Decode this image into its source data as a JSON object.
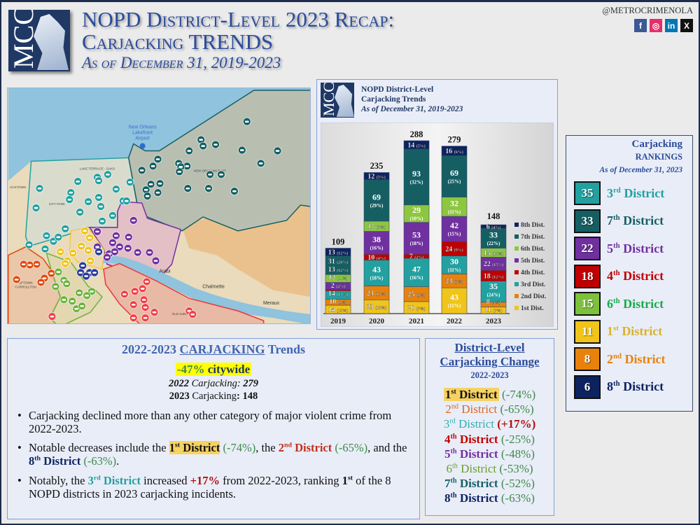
{
  "header": {
    "logo_text": "MCC",
    "title_line1": "NOPD District-Level 2023 Recap:",
    "title_line2": "Carjacking TRENDS",
    "subtitle": "As of December 31, 2019-2023",
    "handle": "@METROCRIMENOLA",
    "social": [
      {
        "icon": "facebook-icon",
        "glyph": "f",
        "color": "#3b5998"
      },
      {
        "icon": "instagram-icon",
        "glyph": "◎",
        "color": "#e1306c"
      },
      {
        "icon": "linkedin-icon",
        "glyph": "in",
        "color": "#0077b5"
      },
      {
        "icon": "x-icon",
        "glyph": "X",
        "color": "#111111"
      }
    ]
  },
  "map": {
    "labels": [
      "New Orleans",
      "Lakefront",
      "Airport",
      "LAKE TERRACE - OAKS",
      "CITY PARK",
      "UCKTOWN",
      "UPTOWN",
      "CARROLLTON",
      "Arabi",
      "Chalmette",
      "Meraux",
      "OLD AURORA",
      "NEW ORLEANS EAST"
    ]
  },
  "chart_panel": {
    "logo_text": "MCC",
    "title_line1": "NOPD District-Level",
    "title_line2": "Carjacking Trends",
    "subtitle": "As of December 31, 2019-2023"
  },
  "chart_data": {
    "type": "bar",
    "stacked": true,
    "categories": [
      "2019",
      "2020",
      "2021",
      "2022",
      "2023"
    ],
    "totals": [
      109,
      235,
      288,
      279,
      148
    ],
    "series": [
      {
        "name": "1st Dist.",
        "color": "#f0c419",
        "values": [
          14,
          23,
          20,
          43,
          11
        ],
        "pct": [
          "13%",
          "10%",
          "7%",
          "15%",
          "7%"
        ]
      },
      {
        "name": "2nd Dist.",
        "color": "#e8820c",
        "values": [
          10,
          23,
          25,
          23,
          8
        ],
        "pct": [
          "9%",
          "10%",
          "9%",
          "8%",
          "5%"
        ]
      },
      {
        "name": "3rd Dist.",
        "color": "#23a0a0",
        "values": [
          14,
          43,
          47,
          30,
          35
        ],
        "pct": [
          "13%",
          "18%",
          "16%",
          "11%",
          "24%"
        ]
      },
      {
        "name": "4th Dist.",
        "color": "#c00000",
        "values": [
          2,
          10,
          7,
          24,
          18
        ],
        "pct": [
          "2%",
          "4%",
          "2%",
          "9%",
          "12%"
        ]
      },
      {
        "name": "5th Dist.",
        "color": "#7030a0",
        "values": [
          12,
          38,
          53,
          42,
          22
        ],
        "pct": [
          "11%",
          "16%",
          "18%",
          "15%",
          "15%"
        ]
      },
      {
        "name": "6th Dist.",
        "color": "#8dc63f",
        "values": [
          13,
          17,
          29,
          32,
          15
        ],
        "pct": [
          "12%",
          "7%",
          "10%",
          "11%",
          "10%"
        ]
      },
      {
        "name": "7th Dist.",
        "color": "#155f63",
        "values": [
          31,
          69,
          93,
          69,
          33
        ],
        "pct": [
          "28%",
          "29%",
          "32%",
          "25%",
          "22%"
        ]
      },
      {
        "name": "8th Dist.",
        "color": "#0d2360",
        "values": [
          13,
          12,
          14,
          16,
          6
        ],
        "pct": [
          "12%",
          "5%",
          "5%",
          "6%",
          "4%"
        ]
      }
    ],
    "ylim": [
      0,
      300
    ],
    "legend": "right",
    "grid": false
  },
  "rankings": {
    "title1": "Carjacking",
    "title2": "RANKINGS",
    "subtitle": "As of December 31, 2023",
    "items": [
      {
        "value": "35",
        "ord": "3",
        "sup": "rd",
        "name": "District",
        "color": "#23a0a0",
        "text_color": "#23a0a0"
      },
      {
        "value": "33",
        "ord": "7",
        "sup": "th",
        "name": "District",
        "color": "#155f63",
        "text_color": "#155f63"
      },
      {
        "value": "22",
        "ord": "5",
        "sup": "th",
        "name": "District",
        "color": "#7030a0",
        "text_color": "#7030a0"
      },
      {
        "value": "18",
        "ord": "4",
        "sup": "th",
        "name": "District",
        "color": "#c00000",
        "text_color": "#c00000"
      },
      {
        "value": "15",
        "ord": "6",
        "sup": "th",
        "name": "District",
        "color": "#7dc03c",
        "text_color": "#1aab4b"
      },
      {
        "value": "11",
        "ord": "1",
        "sup": "st",
        "name": "District",
        "color": "#f0c419",
        "text_color": "#d9b22a"
      },
      {
        "value": "8",
        "ord": "2",
        "sup": "nd",
        "name": "District",
        "color": "#e8820c",
        "text_color": "#e8820c"
      },
      {
        "value": "6",
        "ord": "8",
        "sup": "th",
        "name": "District",
        "color": "#0d2360",
        "text_color": "#0d2360"
      }
    ]
  },
  "trends": {
    "title_pre": "2022-2023 ",
    "title_u": "CARJACKING",
    "title_post": " Trends",
    "citywide_pct": "-47%",
    "citywide_label": " citywide",
    "y2022": "2022",
    "y2022_label": " Carjacking: ",
    "y2022_value": "279",
    "y2023": "2023",
    "y2023_label": " Carjacking",
    "y2023_value": ": 148",
    "bullet1": "Carjacking declined more than any other category of major violent crime from 2022-2023.",
    "bullet2": {
      "t1": "Notable decreases include the ",
      "d1": "1",
      "d1s": "st",
      "d1n": " District",
      "p1": "(-74%)",
      "t2": ", the ",
      "d2": "2",
      "d2s": "nd",
      "d2n": " District",
      "p2": "(-65%)",
      "t3": ", and the ",
      "d3": "8",
      "d3s": "th",
      "d3n": " District",
      "p3": "(-63%)",
      "t4": "."
    },
    "bullet3": {
      "t1": "Notably, the ",
      "d": "3",
      "ds": "rd",
      "dn": " District",
      "t2": " increased ",
      "pct": "+17%",
      "t3": " from 2022-2023, ranking ",
      "rank": "1",
      "rank_sup": "st",
      "t4": " of the 8 NOPD districts in 2023 carjacking incidents."
    }
  },
  "change": {
    "title1": "District-Level",
    "title2": "Carjacking Change",
    "years": "2022-2023",
    "items": [
      {
        "ord": "1",
        "sup": "st",
        "name": "District",
        "pct": "(-74%)",
        "color": "#111111",
        "pct_color": "#3e8a4a",
        "highlight": true
      },
      {
        "ord": "2",
        "sup": "nd",
        "name": "District",
        "pct": "(-65%)",
        "color": "#d9662a",
        "pct_color": "#3e8a4a"
      },
      {
        "ord": "3",
        "sup": "rd",
        "name": "District",
        "pct": "(+17%)",
        "color": "#2fb0b0",
        "pct_color": "#b01010"
      },
      {
        "ord": "4",
        "sup": "th",
        "name": "District",
        "pct": "(-25%)",
        "color": "#c00000",
        "pct_color": "#3e8a4a"
      },
      {
        "ord": "5",
        "sup": "th",
        "name": "District",
        "pct": "(-48%)",
        "color": "#7030a0",
        "pct_color": "#3e8a4a"
      },
      {
        "ord": "6",
        "sup": "th",
        "name": "District",
        "pct": "(-53%)",
        "color": "#6a9f2a",
        "pct_color": "#3e8a4a"
      },
      {
        "ord": "7",
        "sup": "th",
        "name": "District",
        "pct": "(-52%)",
        "color": "#155f63",
        "pct_color": "#3e8a4a"
      },
      {
        "ord": "8",
        "sup": "th",
        "name": "District",
        "pct": "(-63%)",
        "color": "#0d2360",
        "pct_color": "#3e8a4a"
      }
    ]
  }
}
